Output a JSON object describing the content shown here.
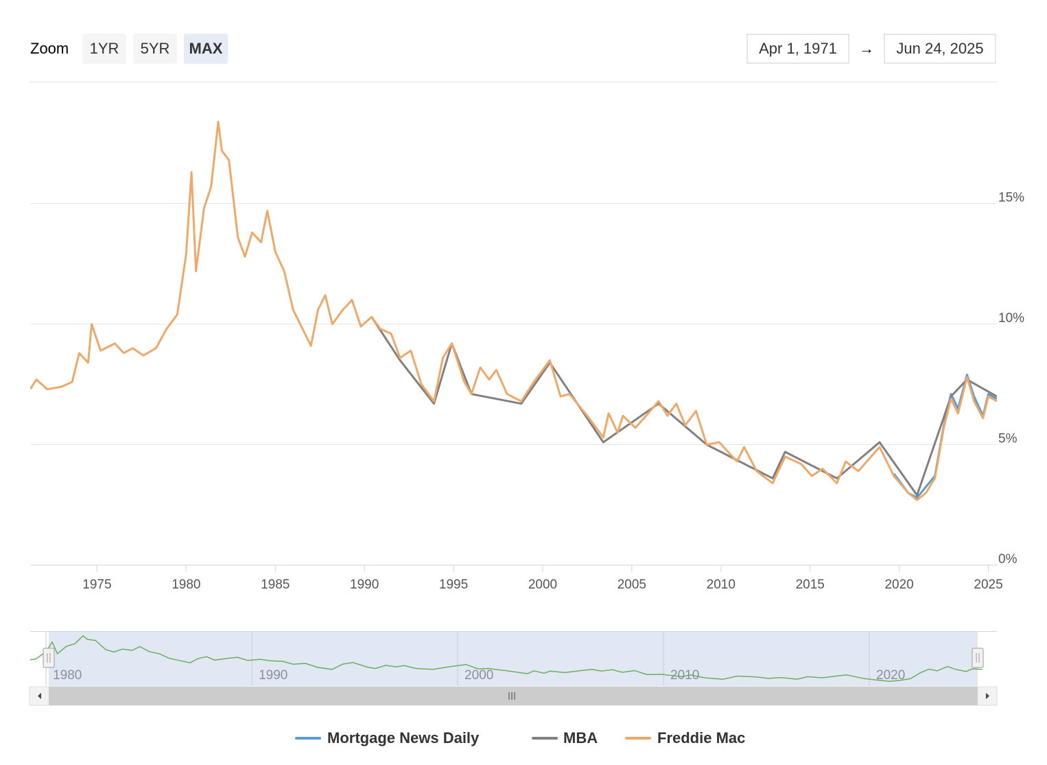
{
  "toolbar": {
    "zoom_label": "Zoom",
    "buttons": [
      "1YR",
      "5YR",
      "MAX"
    ],
    "active_button": 2,
    "date_from": "Apr 1, 1971",
    "arrow": "→",
    "date_to": "Jun 24, 2025"
  },
  "chart_data": {
    "type": "line",
    "xlim": [
      1971.25,
      2025.48
    ],
    "xticks": [
      1975,
      1980,
      1985,
      1990,
      1995,
      2000,
      2005,
      2010,
      2015,
      2020,
      2025
    ],
    "ylim": [
      0,
      20
    ],
    "yticks": [
      {
        "value": 0,
        "label": "0%"
      },
      {
        "value": 5,
        "label": "5%"
      },
      {
        "value": 10,
        "label": "10%"
      },
      {
        "value": 15,
        "label": "15%"
      }
    ],
    "grid": true,
    "series": [
      {
        "name": "Mortgage News Daily",
        "color": "#5b9bd5",
        "x": [
          2019.7,
          2020.5,
          2021.0,
          2022.0,
          2022.5,
          2022.9,
          2023.3,
          2023.8,
          2024.2,
          2024.7,
          2025.0,
          2025.48
        ],
        "values": [
          3.8,
          3.0,
          2.8,
          3.7,
          5.8,
          7.1,
          6.5,
          7.9,
          7.0,
          6.2,
          7.1,
          6.9
        ]
      },
      {
        "name": "MBA",
        "color": "#808080",
        "x": [
          1990.4,
          1992.0,
          1993.9,
          1994.9,
          1996.0,
          1998.8,
          2000.4,
          2003.4,
          2006.5,
          2009.2,
          2012.9,
          2013.6,
          2016.5,
          2018.9,
          2021.0,
          2022.9,
          2023.8,
          2025.48
        ],
        "values": [
          10.3,
          8.5,
          6.7,
          9.2,
          7.1,
          6.7,
          8.4,
          5.1,
          6.7,
          5.0,
          3.6,
          4.7,
          3.6,
          5.1,
          2.9,
          7.0,
          7.7,
          7.0
        ]
      },
      {
        "name": "Freddie Mac",
        "color": "#f0a868",
        "x": [
          1971.25,
          1971.6,
          1972.2,
          1973.0,
          1973.6,
          1974.0,
          1974.5,
          1974.7,
          1975.2,
          1976.0,
          1976.5,
          1977.0,
          1977.6,
          1978.3,
          1978.9,
          1979.5,
          1980.0,
          1980.3,
          1980.55,
          1981.0,
          1981.4,
          1981.8,
          1982.0,
          1982.4,
          1982.9,
          1983.3,
          1983.7,
          1984.2,
          1984.55,
          1985.0,
          1985.5,
          1986.0,
          1986.4,
          1987.0,
          1987.4,
          1987.8,
          1988.2,
          1988.8,
          1989.3,
          1989.8,
          1990.4,
          1990.9,
          1991.5,
          1992.0,
          1992.6,
          1993.2,
          1993.9,
          1994.4,
          1994.9,
          1995.6,
          1996.0,
          1996.5,
          1997.0,
          1997.4,
          1998.0,
          1998.8,
          1999.5,
          2000.4,
          2001.0,
          2001.5,
          2002.5,
          2003.4,
          2003.7,
          2004.2,
          2004.5,
          2005.2,
          2005.8,
          2006.5,
          2007.0,
          2007.5,
          2008.0,
          2008.6,
          2009.2,
          2009.9,
          2010.9,
          2011.3,
          2012.0,
          2012.9,
          2013.6,
          2014.5,
          2015.1,
          2015.7,
          2016.5,
          2017.0,
          2017.7,
          2018.9,
          2019.7,
          2020.5,
          2021.0,
          2021.5,
          2022.0,
          2022.5,
          2022.9,
          2023.3,
          2023.8,
          2024.2,
          2024.7,
          2025.0,
          2025.48
        ],
        "values": [
          7.3,
          7.7,
          7.3,
          7.4,
          7.6,
          8.8,
          8.4,
          10.0,
          8.9,
          9.2,
          8.8,
          9.0,
          8.7,
          9.0,
          9.8,
          10.4,
          12.9,
          16.3,
          12.2,
          14.8,
          15.7,
          18.4,
          17.2,
          16.8,
          13.6,
          12.8,
          13.8,
          13.4,
          14.7,
          13.0,
          12.2,
          10.6,
          10.0,
          9.1,
          10.6,
          11.2,
          10.0,
          10.6,
          11.0,
          9.9,
          10.3,
          9.8,
          9.6,
          8.6,
          8.9,
          7.5,
          6.8,
          8.6,
          9.2,
          7.6,
          7.1,
          8.2,
          7.7,
          8.1,
          7.1,
          6.8,
          7.6,
          8.5,
          7.0,
          7.1,
          6.2,
          5.3,
          6.3,
          5.5,
          6.2,
          5.7,
          6.2,
          6.8,
          6.2,
          6.7,
          5.8,
          6.4,
          5.0,
          5.1,
          4.3,
          4.9,
          3.9,
          3.4,
          4.5,
          4.2,
          3.7,
          4.0,
          3.4,
          4.3,
          3.9,
          4.9,
          3.7,
          3.0,
          2.7,
          3.0,
          3.6,
          5.7,
          6.9,
          6.3,
          7.8,
          6.8,
          6.1,
          7.0,
          6.8
        ]
      }
    ],
    "navigator": {
      "series": 2,
      "color": "#6aaf5c",
      "xlim": [
        1979.23,
        2026.2
      ],
      "ylim": [
        1.3,
        19.8
      ],
      "xticks": [
        1980,
        1990,
        2000,
        2010,
        2020
      ]
    }
  }
}
